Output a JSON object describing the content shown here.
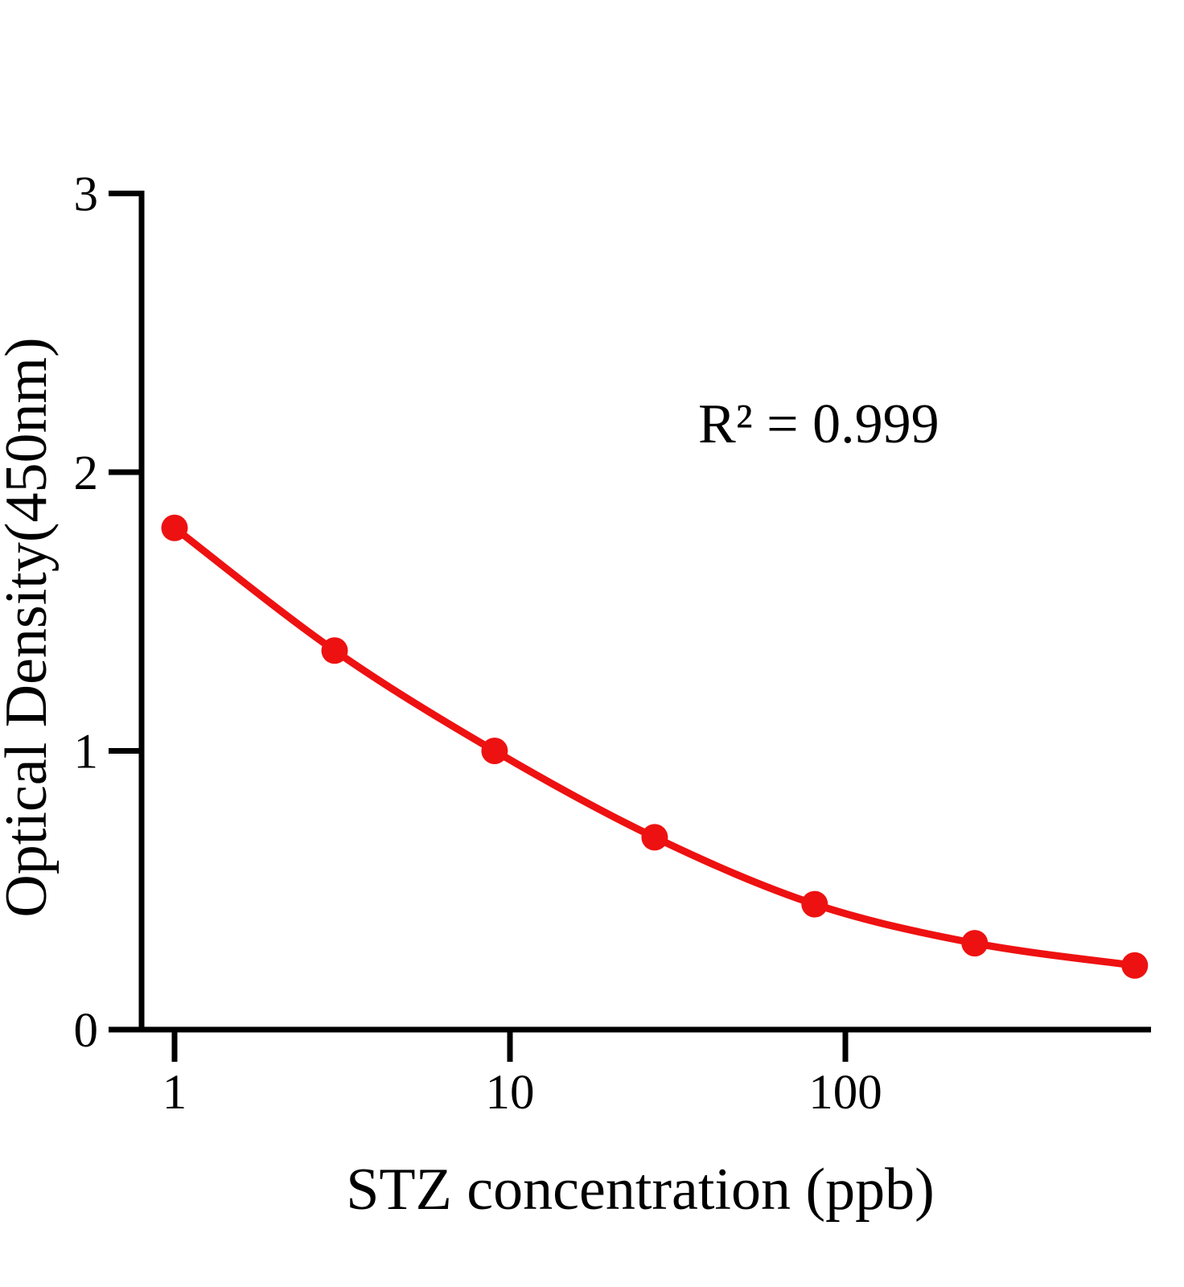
{
  "chart_data": {
    "type": "scatter",
    "title": "",
    "xlabel": "STZ concentration (ppb)",
    "ylabel": "Optical Density(450nm)",
    "annotation": "R² = 0.999",
    "x_scale": "log10",
    "x": [
      1,
      3,
      9,
      27,
      81,
      243,
      729
    ],
    "y": [
      1.8,
      1.36,
      1.0,
      0.69,
      0.45,
      0.31,
      0.23
    ],
    "x_tick_values": [
      1,
      10,
      100
    ],
    "x_tick_labels": [
      "1",
      "10",
      "100"
    ],
    "y_tick_values": [
      0,
      1,
      2,
      3
    ],
    "y_tick_labels": [
      "0",
      "1",
      "2",
      "3"
    ],
    "ylim": [
      0,
      3
    ],
    "xlim": [
      0.8,
      815
    ],
    "grid": false,
    "legend": "none",
    "marker": "filled-circle",
    "series_color": "#ee1111",
    "axis_color": "#000000",
    "background_color": "#ffffff"
  }
}
